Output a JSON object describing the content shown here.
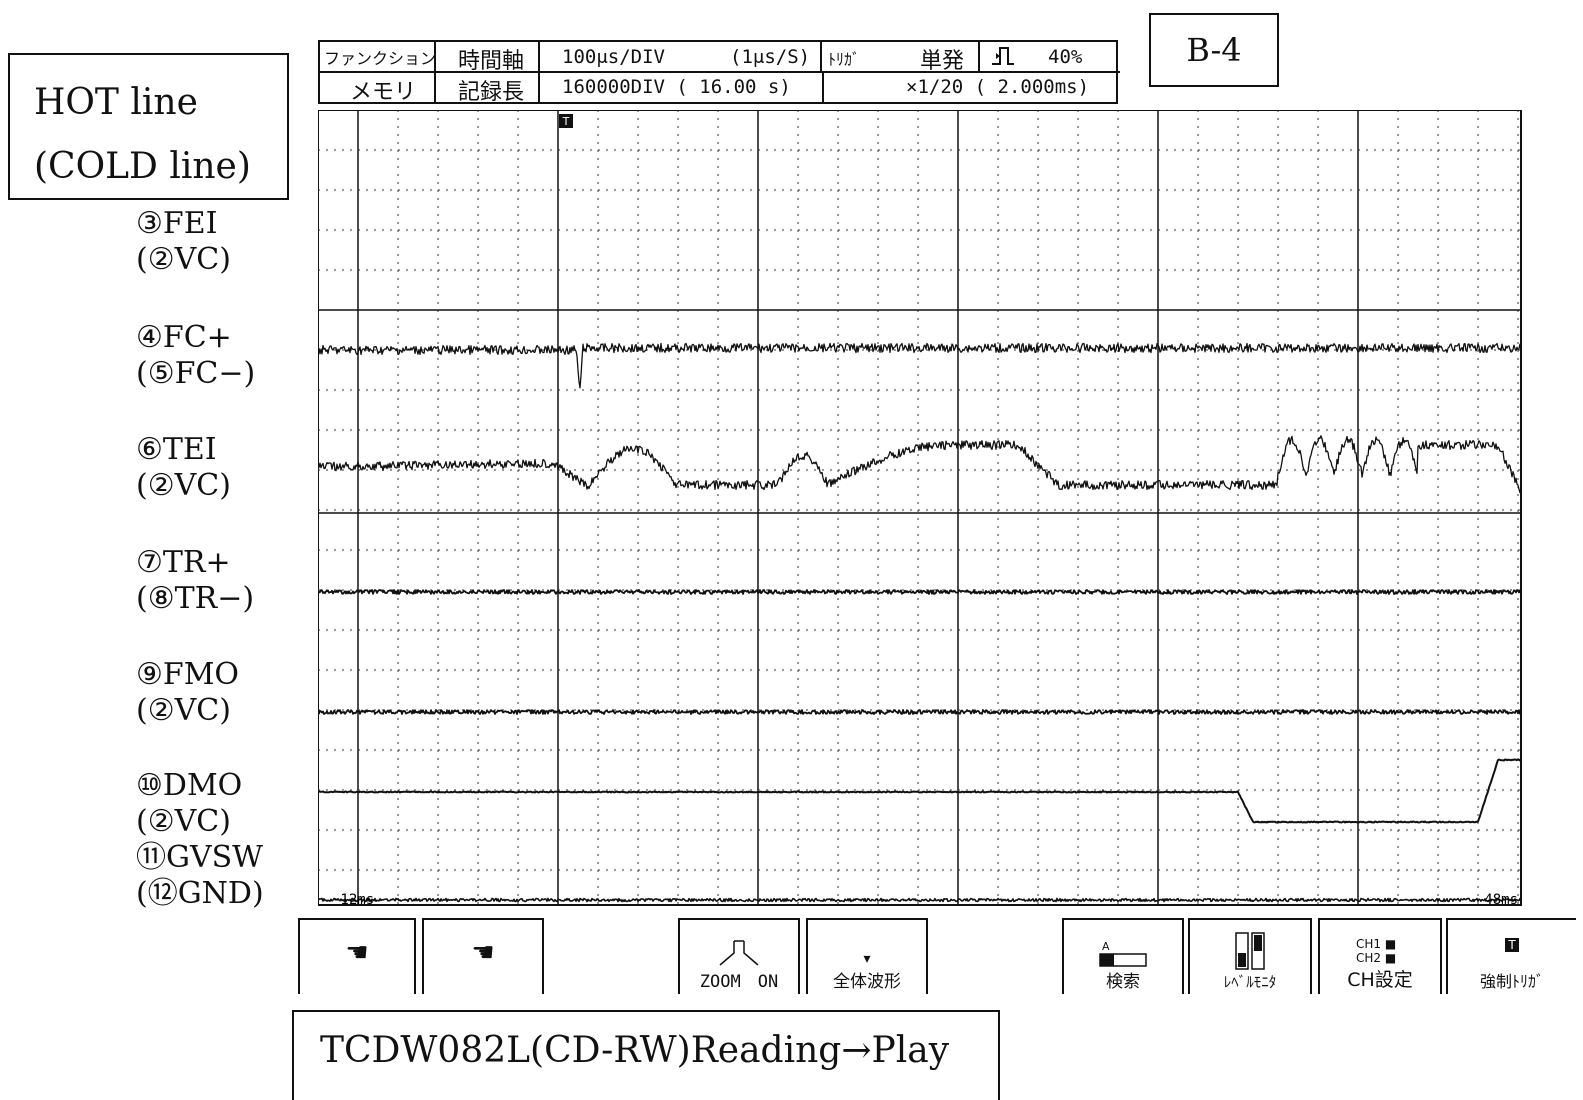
{
  "labels": {
    "hot_line": "HOT line",
    "cold_line": "(COLD line)",
    "panel_id": "B-4",
    "caption": "TCDW082L(CD-RW)Reading→Play"
  },
  "header": {
    "function_label": "ファンクション",
    "function_value": "メモリ",
    "timebase_label": "時間軸",
    "timebase_value": "100μs/DIV",
    "sample_rate": "(1μs/S)",
    "record_label": "記録長",
    "record_value": "160000DIV ( 16.00 s)",
    "trigger_label": "ﾄﾘｶﾞ",
    "trigger_mode": "単発",
    "trigger_icon": "trigger-edge-icon",
    "trigger_position": "40%",
    "zoom_ratio": "×1/20 ( 2.000ms)"
  },
  "channels": [
    {
      "number": "1",
      "name": "③FEI",
      "ref": "(②VC)"
    },
    {
      "number": "2",
      "name": "④FC+",
      "ref": "(⑤FC−)"
    },
    {
      "number": "3",
      "name": "⑥TEI",
      "ref": "(②VC)"
    },
    {
      "number": "4",
      "name": "⑦TR+",
      "ref": "(⑧TR−)"
    },
    {
      "number": "5",
      "name": "⑨FMO",
      "ref": "(②VC)"
    },
    {
      "number": "6",
      "name": "⑩DMO",
      "ref": "(②VC)"
    },
    {
      "number": "7",
      "name": "⑪GVSW",
      "ref": "(⑫GND)"
    }
  ],
  "scope": {
    "trigger_marker": "T",
    "time_start": "-12ms",
    "time_end": "48ms",
    "trace_color": "#111111"
  },
  "softkeys": {
    "key1_icon": "hand-cursor-icon",
    "key2_icon": "hand-cursor-icon",
    "zoom_label": "ZOOM　ON",
    "full_wave_label": "全体波形",
    "search_label": "検索",
    "level_monitor_label": "ﾚﾍﾞﾙﾓﾆﾀ",
    "ch_setting_label": "CH設定",
    "ch1": "CH1",
    "ch2": "CH2",
    "force_trigger_label": "強制ﾄﾘｶﾞ",
    "search_marker": "A"
  }
}
